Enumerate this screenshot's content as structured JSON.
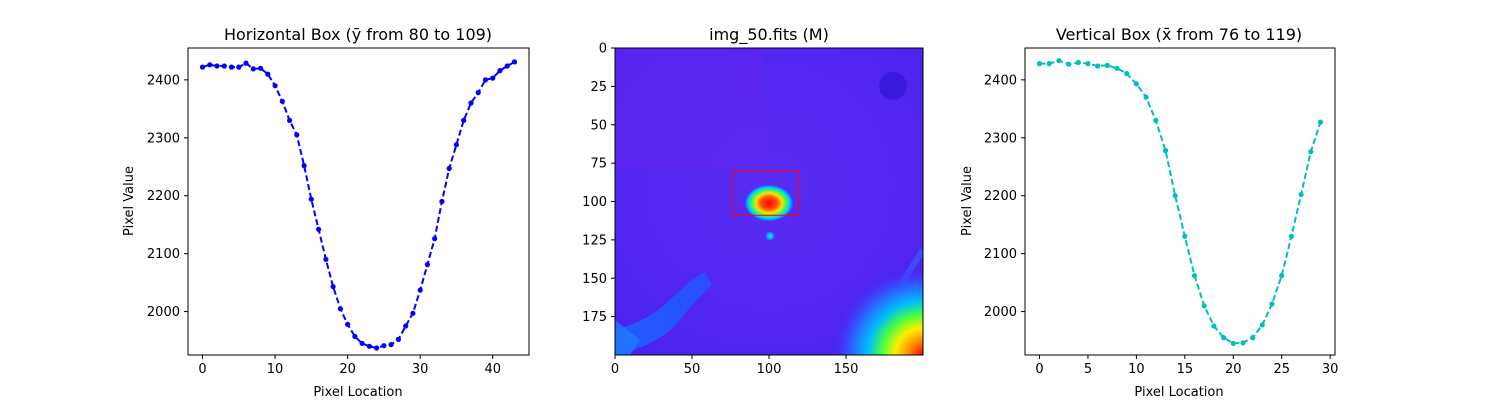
{
  "chart_data": [
    {
      "type": "line",
      "title": "Horizontal Box (ȳ from 80 to 109)",
      "xlabel": "Pixel Location",
      "ylabel": "Pixel Value",
      "xlim": [
        -2,
        45
      ],
      "ylim": [
        1925,
        2455
      ],
      "xticks": [
        0,
        10,
        20,
        30,
        40
      ],
      "yticks": [
        2000,
        2100,
        2200,
        2300,
        2400
      ],
      "color": "#0000ff",
      "line_style": "dashed",
      "marker": "circle",
      "x": [
        0,
        1,
        2,
        3,
        4,
        5,
        6,
        7,
        8,
        9,
        10,
        11,
        12,
        13,
        14,
        15,
        16,
        17,
        18,
        19,
        20,
        21,
        22,
        23,
        24,
        25,
        26,
        27,
        28,
        29,
        30,
        31,
        32,
        33,
        34,
        35,
        36,
        37,
        38,
        39,
        40,
        41,
        42,
        43
      ],
      "values": [
        2422,
        2426,
        2424,
        2424,
        2422,
        2422,
        2429,
        2419,
        2420,
        2410,
        2390,
        2363,
        2330,
        2305,
        2252,
        2194,
        2142,
        2090,
        2043,
        2005,
        1978,
        1957,
        1945,
        1940,
        1937,
        1941,
        1943,
        1952,
        1975,
        1997,
        2037,
        2081,
        2126,
        2190,
        2247,
        2288,
        2330,
        2360,
        2378,
        2400,
        2403,
        2416,
        2424,
        2431
      ]
    },
    {
      "type": "heatmap",
      "title": "img_50.fits (M)",
      "xlabel": "",
      "ylabel": "",
      "xlim": [
        0,
        200
      ],
      "ylim": [
        200,
        0
      ],
      "xticks": [
        0,
        50,
        100,
        150
      ],
      "yticks": [
        0,
        25,
        50,
        75,
        100,
        125,
        150,
        175
      ],
      "colormap": "rainbow",
      "box": {
        "x_from": 76,
        "x_to": 119,
        "y_from": 80,
        "y_to": 109,
        "color": "#ff0000"
      },
      "bright_source": {
        "x": 100,
        "y": 100,
        "level": "peak"
      },
      "small_source": {
        "x": 100,
        "y": 122,
        "level": "medium"
      }
    },
    {
      "type": "line",
      "title": "Vertical Box (x̄ from 76 to 119)",
      "xlabel": "Pixel Location",
      "ylabel": "Pixel Value",
      "xlim": [
        -1.5,
        30.5
      ],
      "ylim": [
        1925,
        2455
      ],
      "xticks": [
        0,
        5,
        10,
        15,
        20,
        25,
        30
      ],
      "yticks": [
        2000,
        2100,
        2200,
        2300,
        2400
      ],
      "color": "#00bfbf",
      "line_style": "dashed",
      "marker": "circle",
      "x": [
        0,
        1,
        2,
        3,
        4,
        5,
        6,
        7,
        8,
        9,
        10,
        11,
        12,
        13,
        14,
        15,
        16,
        17,
        18,
        19,
        20,
        21,
        22,
        23,
        24,
        25,
        26,
        27,
        28,
        29
      ],
      "values": [
        2428,
        2428,
        2433,
        2427,
        2430,
        2428,
        2424,
        2425,
        2420,
        2411,
        2393,
        2370,
        2330,
        2278,
        2200,
        2130,
        2062,
        2010,
        1975,
        1955,
        1945,
        1946,
        1955,
        1977,
        2013,
        2062,
        2130,
        2202,
        2276,
        2327
      ]
    }
  ]
}
